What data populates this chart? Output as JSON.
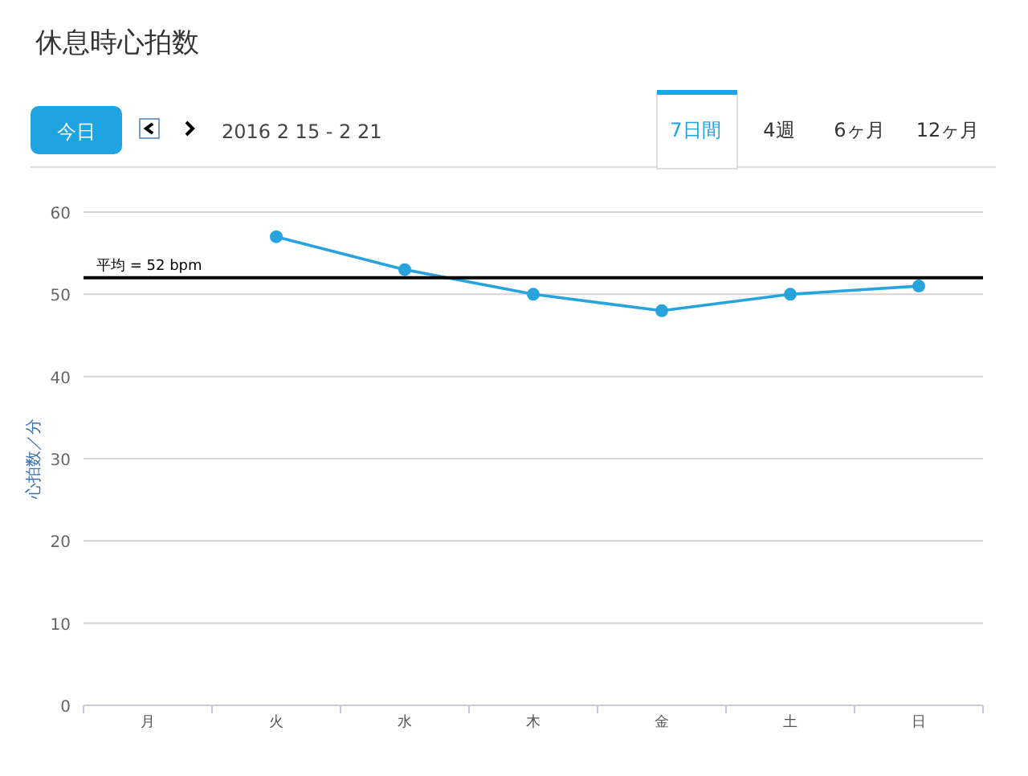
{
  "chart_data": {
    "type": "line",
    "title": "休息時心拍数",
    "subtitle": "2016 2 15 - 2 21",
    "ylabel": "心拍数／分",
    "annotations": [
      "今日",
      "7日間",
      "4週",
      "6ヶ月",
      "12ヶ月"
    ],
    "categories": [
      "月",
      "火",
      "水",
      "木",
      "金",
      "土",
      "日"
    ],
    "series": [
      {
        "color": "#29a3dd",
        "values": [
          null,
          57,
          53,
          50,
          48,
          50,
          51
        ]
      }
    ],
    "ylim": [
      0,
      60
    ],
    "yticks": [
      0,
      10,
      20,
      30,
      40,
      50,
      60
    ],
    "grid": "y",
    "marker": "circle",
    "line_style": "solid",
    "ref_lines": [
      {
        "axis": "y",
        "value": 52,
        "label": "平均 = 52 bpm",
        "color": "#000000"
      }
    ]
  }
}
